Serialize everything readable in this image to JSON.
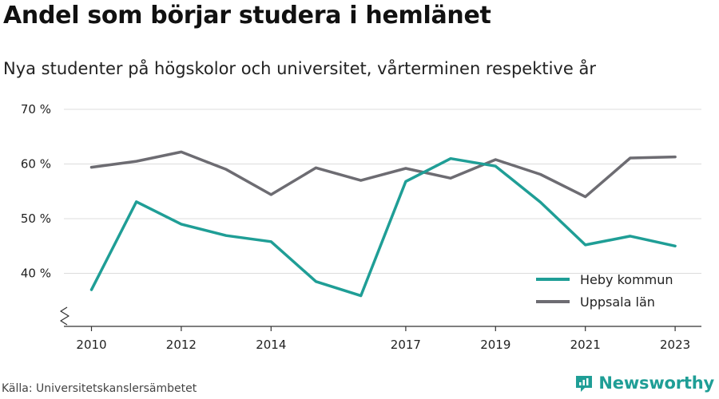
{
  "header": {
    "title": "Andel som börjar studera i hemlänet",
    "subtitle": "Nya studenter på högskolor och universitet, vårterminen respektive år"
  },
  "footer": {
    "source": "Källa: Universitetskanslersämbetet",
    "brand": "Newsworthy",
    "brand_icon": "newsworthy-logo-icon"
  },
  "chart_data": {
    "type": "line",
    "x": [
      2010,
      2011,
      2012,
      2013,
      2014,
      2015,
      2016,
      2017,
      2018,
      2019,
      2020,
      2021,
      2022,
      2023
    ],
    "x_tick_values": [
      2010,
      2012,
      2014,
      2017,
      2019,
      2021,
      2023
    ],
    "x_tick_labels": [
      "2010",
      "2012",
      "2014",
      "2017",
      "2019",
      "2021",
      "2023"
    ],
    "y_tick_values": [
      40,
      50,
      60,
      70
    ],
    "y_tick_labels": [
      "40 %",
      "50 %",
      "60 %",
      "70 %"
    ],
    "ylim": [
      30,
      70
    ],
    "y_axis_break": true,
    "grid": true,
    "legend_position": "bottom-right",
    "series": [
      {
        "name": "Heby kommun",
        "color": "#1f9e96",
        "values": [
          37,
          53.1,
          49,
          46.9,
          45.8,
          38.5,
          35.9,
          56.8,
          61,
          59.6,
          53,
          45.2,
          46.8,
          45
        ]
      },
      {
        "name": "Uppsala län",
        "color": "#6d6c72",
        "values": [
          59.4,
          60.5,
          62.2,
          59,
          54.4,
          59.3,
          57,
          59.2,
          57.4,
          60.8,
          58.1,
          54,
          61.1,
          61.3
        ]
      }
    ]
  }
}
